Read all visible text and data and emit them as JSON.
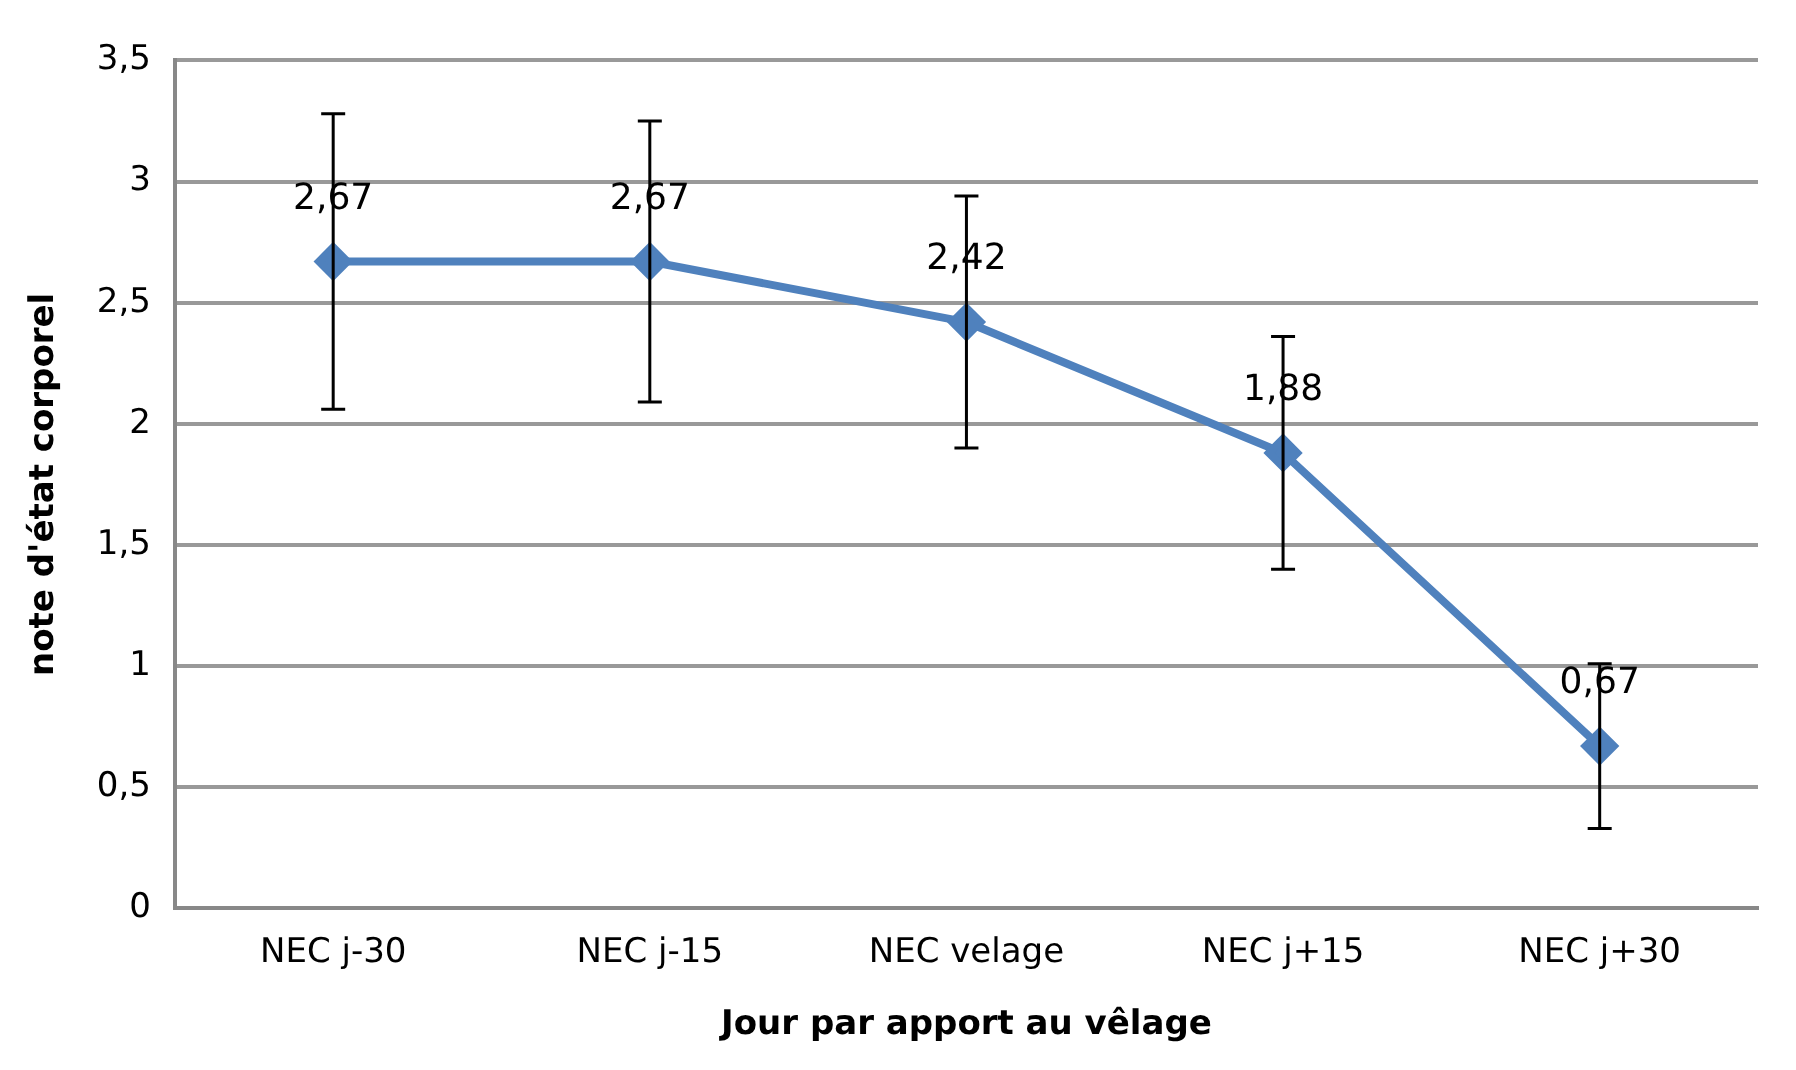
{
  "chart_data": {
    "type": "line",
    "xlabel": "Jour par apport au vêlage",
    "ylabel": "note d'état corporel",
    "categories": [
      "NEC j-30",
      "NEC j-15",
      "NEC velage",
      "NEC j+15",
      "NEC j+30"
    ],
    "series": [
      {
        "color": "#4f81bd",
        "values": [
          2.67,
          2.67,
          2.42,
          1.88,
          0.67
        ],
        "errors": [
          0.61,
          0.58,
          0.52,
          0.48,
          0.34
        ],
        "value_labels": [
          "2,67",
          "2,67",
          "2,42",
          "1,88",
          "0,67"
        ]
      }
    ],
    "ylim": [
      0,
      3.5
    ],
    "yticks": [
      0,
      {
        "value": 0.5,
        "label": "0,5"
      },
      1,
      {
        "value": 1.5,
        "label": "1,5"
      },
      2,
      {
        "value": 2.5,
        "label": "2,5"
      },
      3,
      {
        "value": 3.5,
        "label": "3,5"
      }
    ],
    "grid": "y",
    "legend": false,
    "marker": "diamond",
    "line_style": "solid"
  }
}
